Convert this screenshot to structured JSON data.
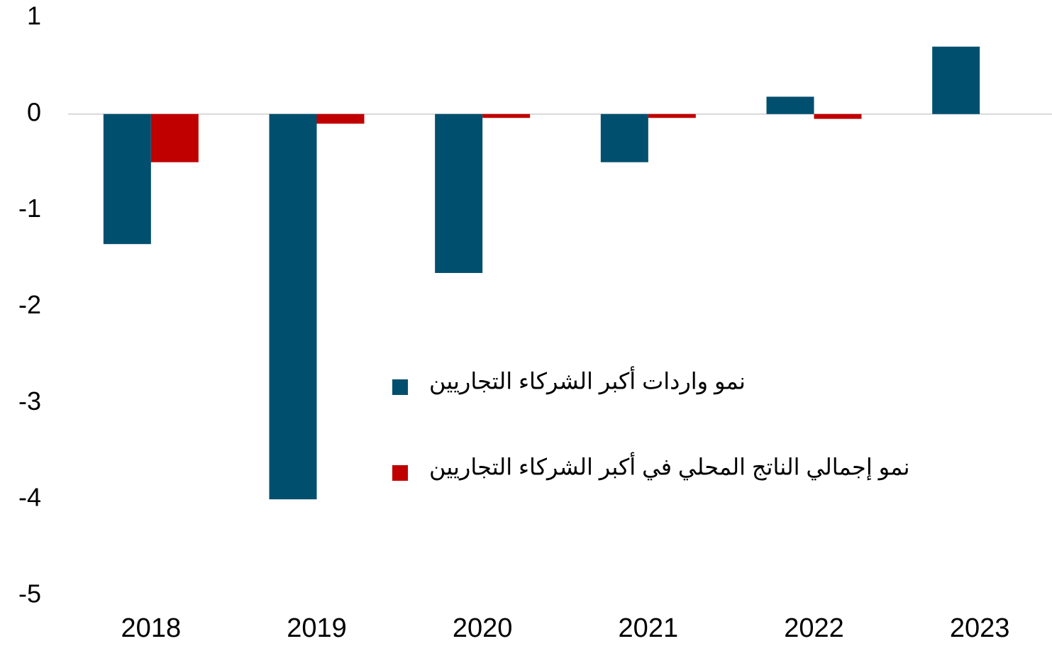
{
  "chart_data": {
    "type": "bar",
    "categories": [
      "2018",
      "2019",
      "2020",
      "2021",
      "2022",
      "2023"
    ],
    "series": [
      {
        "name": "نمو واردات أكبر الشركاء التجاريين",
        "color": "#004f6e",
        "values": [
          -1.35,
          -4.0,
          -1.65,
          -0.5,
          0.18,
          0.7
        ]
      },
      {
        "name": "نمو إجمالي الناتج المحلي في أكبر الشركاء التجاريين",
        "color": "#c00000",
        "values": [
          -0.5,
          -0.1,
          -0.04,
          -0.04,
          -0.05,
          null
        ]
      }
    ],
    "ylim": [
      -5,
      1
    ],
    "yticks": [
      -5,
      -4,
      -3,
      -2,
      -1,
      0,
      1
    ],
    "grid": false,
    "legend": "center"
  }
}
